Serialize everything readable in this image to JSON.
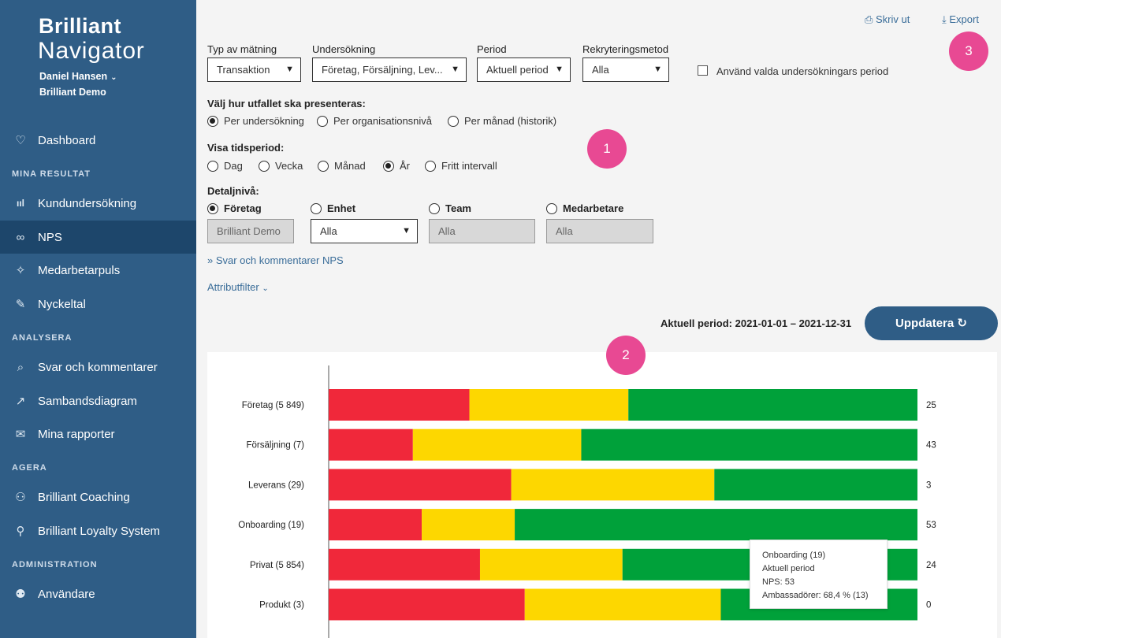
{
  "brand": {
    "line1": "Brilliant",
    "line2": "Navigator"
  },
  "user": {
    "name": "Daniel Hansen",
    "org": "Brilliant Demo"
  },
  "sidebar": {
    "items": [
      {
        "icon": "heart-icon",
        "glyph": "♡",
        "label": "Dashboard"
      },
      {
        "icon": "bar-chart-icon",
        "glyph": "ııl",
        "label": "Kundundersökning"
      },
      {
        "icon": "link-icon",
        "glyph": "∞",
        "label": "NPS",
        "active": true
      },
      {
        "icon": "pulse-icon",
        "glyph": "✧",
        "label": "Medarbetarpuls"
      },
      {
        "icon": "ruler-icon",
        "glyph": "✎",
        "label": "Nyckeltal"
      },
      {
        "icon": "search-icon",
        "glyph": "⌕",
        "label": "Svar och kommentarer"
      },
      {
        "icon": "trend-icon",
        "glyph": "↗",
        "label": "Sambandsdiagram"
      },
      {
        "icon": "mail-icon",
        "glyph": "✉",
        "label": "Mina rapporter"
      },
      {
        "icon": "coaching-icon",
        "glyph": "⚇",
        "label": "Brilliant Coaching"
      },
      {
        "icon": "loyalty-icon",
        "glyph": "⚲",
        "label": "Brilliant Loyalty System"
      },
      {
        "icon": "users-icon",
        "glyph": "⚉",
        "label": "Användare"
      }
    ],
    "sections": [
      "MINA RESULTAT",
      "ANALYSERA",
      "AGERA",
      "ADMINISTRATION"
    ]
  },
  "toolbar": {
    "print": "Skriv ut",
    "export": "Export"
  },
  "filters": {
    "type_label": "Typ av mätning",
    "type_value": "Transaktion",
    "survey_label": "Undersökning",
    "survey_value": "Företag, Försäljning, Lev...",
    "period_label": "Period",
    "period_value": "Aktuell period",
    "recruit_label": "Rekryteringsmetod",
    "recruit_value": "Alla",
    "checkbox_label": "Använd valda undersökningars period"
  },
  "presentation": {
    "label": "Välj hur utfallet ska presenteras:",
    "options": [
      "Per undersökning",
      "Per organisationsnivå",
      "Per månad (historik)"
    ],
    "selected": 0
  },
  "timeperiod": {
    "label": "Visa tidsperiod:",
    "options": [
      "Dag",
      "Vecka",
      "Månad",
      "År",
      "Fritt intervall"
    ],
    "selected": 3
  },
  "detail": {
    "label": "Detaljnivå:",
    "levels": [
      "Företag",
      "Enhet",
      "Team",
      "Medarbetare"
    ],
    "selected": 0,
    "values": [
      "Brilliant Demo",
      "Alla",
      "Alla",
      "Alla"
    ]
  },
  "links": {
    "comments": "» Svar och kommentarer NPS",
    "attribute": "Attributfilter"
  },
  "period_text": "Aktuell period: 2021-01-01 – 2021-12-31",
  "update_button": "Uppdatera",
  "markers": [
    "1",
    "2",
    "3"
  ],
  "colors": {
    "detractor": "#f0283a",
    "passive": "#fdd700",
    "promoter": "#00a13a",
    "sidebar": "#2f5d86",
    "accent": "#e84993"
  },
  "chart_data": {
    "type": "bar",
    "stacked": true,
    "orientation": "horizontal",
    "categories": [
      "Företag (5 849)",
      "Försäljning (7)",
      "Leverans (29)",
      "Onboarding (19)",
      "Privat (5 854)",
      "Produkt (3)"
    ],
    "series": [
      {
        "key": "detractor",
        "values": [
          23.9,
          14.3,
          31.0,
          15.8,
          25.7,
          33.3
        ]
      },
      {
        "key": "passive",
        "values": [
          27.0,
          28.6,
          34.5,
          15.8,
          24.2,
          33.3
        ]
      },
      {
        "key": "promoter",
        "values": [
          49.1,
          57.1,
          34.5,
          68.4,
          50.1,
          33.4
        ]
      }
    ],
    "nps": [
      "25",
      "43",
      "3",
      "53",
      "24",
      "0"
    ],
    "xlim": [
      0,
      100
    ],
    "tooltip": [
      "Onboarding (19)",
      "Aktuell period",
      "NPS: 53",
      "Ambassadörer: 68,4 % (13)"
    ]
  }
}
